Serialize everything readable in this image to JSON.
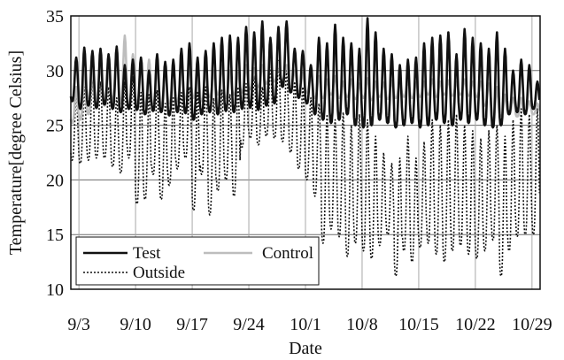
{
  "chart_data": {
    "type": "line",
    "title": "",
    "xlabel": "Date",
    "ylabel": "Temperature[degree Celsius]",
    "x_unit": "date (month/day), 2-hour resolution",
    "xlim": [
      "9/2",
      "10/30"
    ],
    "ylim": [
      10,
      35
    ],
    "yticks": [
      10,
      15,
      20,
      25,
      30,
      35
    ],
    "xticks": [
      {
        "date": "9/3",
        "label": "9/3"
      },
      {
        "date": "9/10",
        "label": "9/10"
      },
      {
        "date": "9/17",
        "label": "9/17"
      },
      {
        "date": "9/24",
        "label": "9/24"
      },
      {
        "date": "10/1",
        "label": "10/1"
      },
      {
        "date": "10/8",
        "label": "10/8"
      },
      {
        "date": "10/15",
        "label": "10/15"
      },
      {
        "date": "10/22",
        "label": "10/22"
      },
      {
        "date": "10/29",
        "label": "10/29"
      }
    ],
    "grid": true,
    "legend_position": "bottom-left",
    "series": [
      {
        "name": "Test",
        "color": "#111111",
        "style": "solid",
        "daily_range": [
          [
            "9/2",
            27.2,
            31.2
          ],
          [
            "9/3",
            26.5,
            32.1
          ],
          [
            "9/4",
            26.8,
            31.8
          ],
          [
            "9/5",
            26.6,
            32.0
          ],
          [
            "9/6",
            26.9,
            31.5
          ],
          [
            "9/7",
            26.5,
            32.2
          ],
          [
            "9/8",
            26.2,
            30.5
          ],
          [
            "9/9",
            26.5,
            31.0
          ],
          [
            "9/10",
            26.4,
            31.2
          ],
          [
            "9/11",
            26.0,
            30.0
          ],
          [
            "9/12",
            26.3,
            31.5
          ],
          [
            "9/13",
            26.2,
            30.8
          ],
          [
            "9/14",
            25.9,
            31.0
          ],
          [
            "9/15",
            26.2,
            32.0
          ],
          [
            "9/16",
            26.1,
            32.5
          ],
          [
            "9/17",
            25.5,
            31.2
          ],
          [
            "9/18",
            26.0,
            31.8
          ],
          [
            "9/19",
            26.2,
            32.5
          ],
          [
            "9/20",
            26.0,
            33.0
          ],
          [
            "9/21",
            26.3,
            33.2
          ],
          [
            "9/22",
            26.2,
            33.0
          ],
          [
            "9/23",
            26.5,
            34.0
          ],
          [
            "9/24",
            26.6,
            33.5
          ],
          [
            "9/25",
            26.4,
            34.5
          ],
          [
            "9/26",
            26.8,
            33.0
          ],
          [
            "9/27",
            27.0,
            34.0
          ],
          [
            "9/28",
            28.5,
            34.5
          ],
          [
            "9/29",
            28.0,
            32.0
          ],
          [
            "9/30",
            27.5,
            31.8
          ],
          [
            "10/1",
            27.0,
            30.5
          ],
          [
            "10/2",
            26.0,
            33.0
          ],
          [
            "10/3",
            25.5,
            32.5
          ],
          [
            "10/4",
            25.2,
            34.2
          ],
          [
            "10/5",
            25.5,
            33.0
          ],
          [
            "10/6",
            26.0,
            32.5
          ],
          [
            "10/7",
            25.0,
            32.0
          ],
          [
            "10/8",
            24.8,
            34.8
          ],
          [
            "10/9",
            25.0,
            33.5
          ],
          [
            "10/10",
            25.5,
            32.0
          ],
          [
            "10/11",
            25.2,
            31.5
          ],
          [
            "10/12",
            24.8,
            30.5
          ],
          [
            "10/13",
            25.0,
            31.0
          ],
          [
            "10/14",
            25.2,
            31.2
          ],
          [
            "10/15",
            24.8,
            32.5
          ],
          [
            "10/16",
            25.0,
            33.0
          ],
          [
            "10/17",
            25.5,
            33.2
          ],
          [
            "10/18",
            25.2,
            33.5
          ],
          [
            "10/19",
            25.0,
            31.5
          ],
          [
            "10/20",
            25.5,
            33.8
          ],
          [
            "10/21",
            25.2,
            33.0
          ],
          [
            "10/22",
            25.5,
            32.5
          ],
          [
            "10/23",
            25.0,
            32.0
          ],
          [
            "10/24",
            24.8,
            33.5
          ],
          [
            "10/25",
            25.0,
            32.0
          ],
          [
            "10/26",
            26.0,
            30.0
          ],
          [
            "10/27",
            26.2,
            31.0
          ],
          [
            "10/28",
            26.0,
            30.5
          ],
          [
            "10/29",
            26.5,
            29.0
          ]
        ]
      },
      {
        "name": "Control",
        "color": "#bdbdbd",
        "style": "solid",
        "daily_range": [
          [
            "9/2",
            25.2,
            28.5
          ],
          [
            "9/3",
            25.5,
            30.0
          ],
          [
            "9/4",
            26.0,
            30.5
          ],
          [
            "9/5",
            26.5,
            31.0
          ],
          [
            "9/6",
            26.8,
            30.2
          ],
          [
            "9/7",
            27.2,
            32.0
          ],
          [
            "9/8",
            27.0,
            33.2
          ],
          [
            "9/9",
            26.5,
            31.5
          ],
          [
            "9/10",
            27.0,
            30.8
          ],
          [
            "9/11",
            26.8,
            31.0
          ],
          [
            "9/12",
            27.0,
            30.2
          ],
          [
            "9/13",
            26.8,
            30.5
          ],
          [
            "9/14",
            27.0,
            30.5
          ],
          [
            "9/15",
            27.2,
            31.0
          ],
          [
            "9/16",
            27.4,
            30.5
          ],
          [
            "9/17",
            27.5,
            30.8
          ],
          [
            "9/18",
            27.2,
            30.2
          ],
          [
            "9/19",
            27.6,
            30.0
          ],
          [
            "9/20",
            27.8,
            30.5
          ],
          [
            "9/21",
            27.5,
            30.0
          ],
          [
            "9/22",
            27.8,
            29.8
          ],
          [
            "9/23",
            28.0,
            30.5
          ],
          [
            "9/24",
            28.3,
            30.2
          ],
          [
            "9/25",
            28.5,
            30.5
          ],
          [
            "9/26",
            28.8,
            31.0
          ],
          [
            "9/27",
            29.0,
            30.8
          ],
          [
            "9/28",
            29.2,
            30.5
          ],
          [
            "9/29",
            28.5,
            30.0
          ],
          [
            "9/30",
            28.0,
            29.8
          ],
          [
            "10/1",
            28.0,
            29.5
          ],
          [
            "10/2",
            27.5,
            29.5
          ],
          [
            "10/3",
            27.5,
            29.2
          ],
          [
            "10/4",
            27.8,
            29.5
          ],
          [
            "10/5",
            27.5,
            29.0
          ],
          [
            "10/6",
            27.6,
            29.2
          ],
          [
            "10/7",
            27.4,
            28.8
          ],
          [
            "10/8",
            27.5,
            29.3
          ],
          [
            "10/9",
            27.3,
            29.0
          ],
          [
            "10/10",
            27.6,
            28.9
          ],
          [
            "10/11",
            27.4,
            29.1
          ],
          [
            "10/12",
            27.5,
            28.9
          ],
          [
            "10/13",
            27.6,
            29.1
          ],
          [
            "10/14",
            27.5,
            28.9
          ],
          [
            "10/15",
            27.6,
            29.0
          ],
          [
            "10/16",
            27.8,
            29.2
          ],
          [
            "10/17",
            27.6,
            29.0
          ],
          [
            "10/18",
            27.8,
            29.1
          ],
          [
            "10/19",
            27.7,
            29.0
          ],
          [
            "10/20",
            27.8,
            29.2
          ],
          [
            "10/21",
            27.7,
            29.0
          ],
          [
            "10/22",
            27.6,
            29.0
          ],
          [
            "10/23",
            26.8,
            28.8
          ],
          [
            "10/24",
            25.5,
            28.5
          ],
          [
            "10/25",
            25.8,
            27.8
          ],
          [
            "10/26",
            26.0,
            27.5
          ],
          [
            "10/27",
            25.8,
            27.5
          ],
          [
            "10/28",
            26.2,
            27.2
          ],
          [
            "10/29",
            26.0,
            27.0
          ]
        ]
      },
      {
        "name": "Outside",
        "color": "#111111",
        "style": "dotted",
        "daily_range": [
          [
            "9/2",
            21.8,
            28.0
          ],
          [
            "9/3",
            21.5,
            28.5
          ],
          [
            "9/4",
            21.8,
            29.5
          ],
          [
            "9/5",
            22.0,
            29.0
          ],
          [
            "9/6",
            22.0,
            28.5
          ],
          [
            "9/7",
            21.2,
            27.5
          ],
          [
            "9/8",
            20.6,
            29.0
          ],
          [
            "9/9",
            22.0,
            29.5
          ],
          [
            "9/10",
            17.8,
            28.0
          ],
          [
            "9/11",
            18.2,
            27.8
          ],
          [
            "9/12",
            20.5,
            28.2
          ],
          [
            "9/13",
            18.2,
            27.0
          ],
          [
            "9/14",
            19.5,
            27.5
          ],
          [
            "9/15",
            21.0,
            28.0
          ],
          [
            "9/16",
            22.0,
            28.5
          ],
          [
            "9/17",
            17.2,
            28.0
          ],
          [
            "9/18",
            20.5,
            28.5
          ],
          [
            "9/19",
            16.8,
            27.5
          ],
          [
            "9/20",
            19.0,
            28.2
          ],
          [
            "9/21",
            20.0,
            27.8
          ],
          [
            "9/22",
            18.5,
            28.5
          ],
          [
            "9/23",
            23.0,
            28.8
          ],
          [
            "9/24",
            23.8,
            29.5
          ],
          [
            "9/25",
            23.2,
            28.5
          ],
          [
            "9/26",
            24.0,
            30.5
          ],
          [
            "9/27",
            23.8,
            31.0
          ],
          [
            "9/28",
            23.5,
            30.0
          ],
          [
            "9/29",
            22.5,
            29.0
          ],
          [
            "9/30",
            21.0,
            28.5
          ],
          [
            "10/1",
            20.0,
            27.5
          ],
          [
            "10/2",
            18.5,
            27.0
          ],
          [
            "10/3",
            14.2,
            26.0
          ],
          [
            "10/4",
            15.5,
            25.5
          ],
          [
            "10/5",
            14.8,
            26.2
          ],
          [
            "10/6",
            13.0,
            25.0
          ],
          [
            "10/7",
            14.2,
            26.0
          ],
          [
            "10/8",
            13.5,
            25.5
          ],
          [
            "10/9",
            12.8,
            24.0
          ],
          [
            "10/10",
            14.0,
            22.5
          ],
          [
            "10/11",
            15.0,
            21.5
          ],
          [
            "10/12",
            11.2,
            22.0
          ],
          [
            "10/13",
            13.5,
            24.0
          ],
          [
            "10/14",
            12.5,
            22.0
          ],
          [
            "10/15",
            13.8,
            23.5
          ],
          [
            "10/16",
            14.2,
            25.5
          ],
          [
            "10/17",
            13.2,
            25.0
          ],
          [
            "10/18",
            12.5,
            25.5
          ],
          [
            "10/19",
            13.5,
            26.0
          ],
          [
            "10/20",
            14.0,
            25.0
          ],
          [
            "10/21",
            13.2,
            24.5
          ],
          [
            "10/22",
            12.8,
            23.8
          ],
          [
            "10/23",
            13.5,
            24.5
          ],
          [
            "10/24",
            14.5,
            25.0
          ],
          [
            "10/25",
            11.2,
            24.0
          ],
          [
            "10/26",
            13.5,
            25.5
          ],
          [
            "10/27",
            14.8,
            26.5
          ],
          [
            "10/28",
            15.0,
            26.0
          ],
          [
            "10/29",
            15.0,
            26.5
          ]
        ]
      }
    ]
  }
}
